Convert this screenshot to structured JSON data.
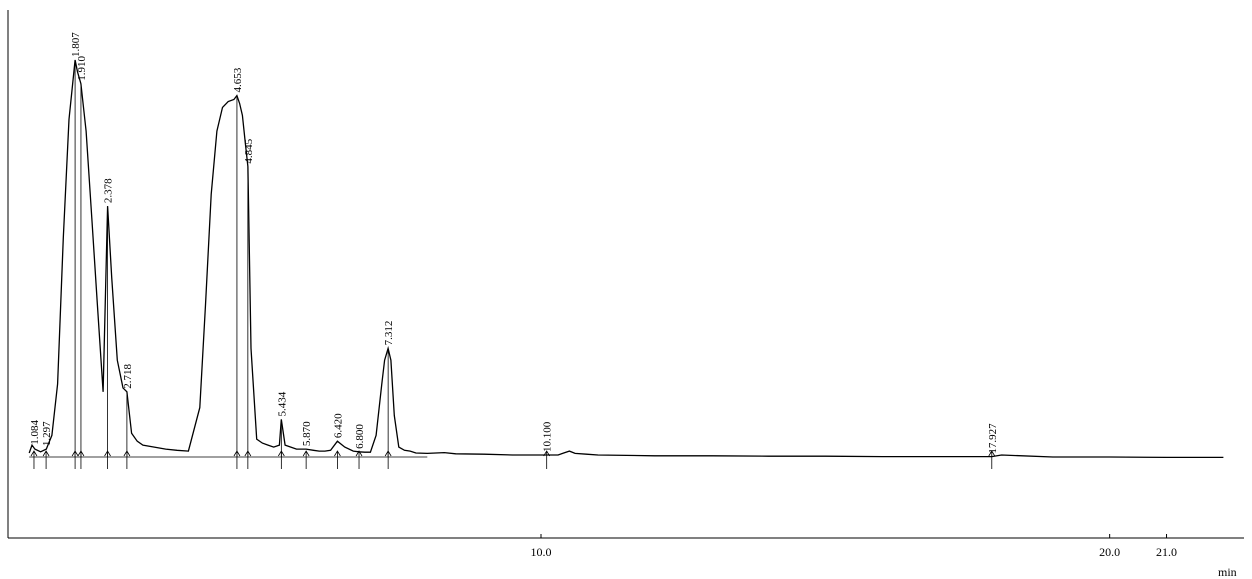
{
  "chart_data": {
    "type": "line",
    "title": "",
    "xlabel": "min",
    "ylabel": "",
    "xlim": [
      1.0,
      22.0
    ],
    "ylim": [
      0,
      100
    ],
    "grid": false,
    "x_ticks": [
      {
        "value": 10.0,
        "label": "10.0"
      },
      {
        "value": 20.0,
        "label": "20.0"
      },
      {
        "value": 21.0,
        "label": "21.0"
      }
    ],
    "series": [
      {
        "x": [
          1.0,
          1.05,
          1.1,
          1.2,
          1.3,
          1.4,
          1.5,
          1.6,
          1.7,
          1.807,
          1.85,
          1.91,
          2.0,
          2.1,
          2.2,
          2.3,
          2.378,
          2.45,
          2.55,
          2.65,
          2.718,
          2.8,
          2.9,
          3.0,
          3.2,
          3.4,
          3.6,
          3.8,
          4.0,
          4.1,
          4.2,
          4.3,
          4.4,
          4.5,
          4.6,
          4.653,
          4.7,
          4.75,
          4.8,
          4.845,
          4.9,
          5.0,
          5.1,
          5.2,
          5.3,
          5.4,
          5.434,
          5.5,
          5.6,
          5.7,
          5.87,
          6.0,
          6.1,
          6.2,
          6.3,
          6.42,
          6.55,
          6.7,
          6.8,
          6.9,
          7.0,
          7.1,
          7.2,
          7.25,
          7.312,
          7.36,
          7.42,
          7.5,
          7.6,
          7.7,
          7.8,
          8.0,
          8.3,
          8.5,
          9.0,
          9.5,
          10.0,
          10.1,
          10.3,
          10.4,
          10.5,
          10.6,
          10.8,
          11.0,
          12.0,
          13.0,
          14.0,
          15.0,
          16.0,
          17.0,
          17.927,
          18.1,
          19.0,
          20.0,
          21.0,
          22.0
        ],
        "values": [
          0.5,
          2.5,
          1.5,
          0.8,
          1.5,
          5.0,
          18.0,
          55.0,
          85.0,
          100.0,
          97.0,
          94.0,
          82.0,
          60.0,
          38.0,
          16.0,
          63.0,
          45.0,
          24.0,
          17.0,
          16.0,
          5.5,
          3.5,
          2.5,
          2.0,
          1.5,
          1.2,
          1.0,
          12.0,
          38.0,
          66.0,
          82.0,
          88.0,
          89.5,
          90.0,
          91.0,
          89.0,
          86.0,
          79.0,
          73.0,
          27.0,
          4.0,
          3.0,
          2.5,
          2.0,
          2.5,
          9.0,
          2.5,
          2.0,
          1.5,
          1.5,
          1.2,
          1.0,
          1.0,
          1.2,
          3.5,
          2.0,
          1.0,
          0.8,
          0.7,
          0.7,
          5.0,
          18.0,
          24.0,
          27.0,
          24.0,
          10.0,
          2.0,
          1.2,
          1.0,
          0.5,
          0.4,
          0.6,
          0.3,
          0.2,
          0.0,
          0.0,
          0.0,
          0.0,
          0.5,
          1.0,
          0.4,
          0.2,
          0.0,
          -0.2,
          -0.2,
          -0.3,
          -0.3,
          -0.4,
          -0.4,
          -0.4,
          0.0,
          -0.5,
          -0.5,
          -0.6,
          -0.6
        ]
      }
    ],
    "peaks": [
      {
        "rt": 1.084,
        "label": "1.084"
      },
      {
        "rt": 1.297,
        "label": "1.297"
      },
      {
        "rt": 1.807,
        "label": "1.807"
      },
      {
        "rt": 1.91,
        "label": "1.910"
      },
      {
        "rt": 2.378,
        "label": "2.378"
      },
      {
        "rt": 2.718,
        "label": "2.718"
      },
      {
        "rt": 4.653,
        "label": "4.653"
      },
      {
        "rt": 4.845,
        "label": "4.845"
      },
      {
        "rt": 5.434,
        "label": "5.434"
      },
      {
        "rt": 5.87,
        "label": "5.870"
      },
      {
        "rt": 6.42,
        "label": "6.420"
      },
      {
        "rt": 6.8,
        "label": "6.800"
      },
      {
        "rt": 7.312,
        "label": "7.312"
      },
      {
        "rt": 10.1,
        "label": "10.100"
      },
      {
        "rt": 17.927,
        "label": "17.927"
      }
    ]
  }
}
